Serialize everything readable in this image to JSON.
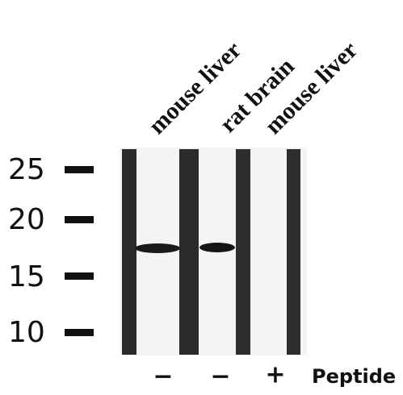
{
  "lanes": [
    {
      "label": "mouse liver",
      "peptide": "−"
    },
    {
      "label": "rat brain",
      "peptide": "−"
    },
    {
      "label": "mouse liver",
      "peptide": "+"
    }
  ],
  "markers": [
    25,
    20,
    15,
    10
  ],
  "peptide_label": "Peptide"
}
